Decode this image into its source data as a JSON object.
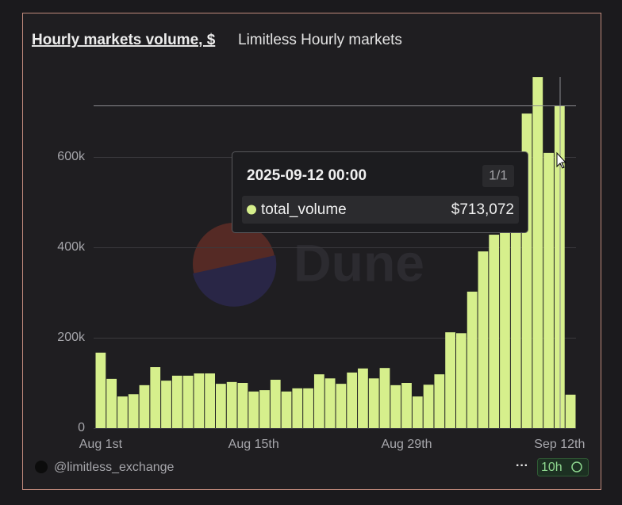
{
  "chart_data": {
    "type": "bar",
    "title": "Hourly markets volume, $",
    "subtitle": "Limitless Hourly markets",
    "watermark": "Dune",
    "categories": [
      "Aug 1st",
      null,
      null,
      null,
      null,
      null,
      null,
      null,
      null,
      null,
      null,
      null,
      null,
      null,
      "Aug 15th",
      null,
      null,
      null,
      null,
      null,
      null,
      null,
      null,
      null,
      null,
      null,
      null,
      null,
      "Aug 29th",
      null,
      null,
      null,
      null,
      null,
      null,
      null,
      null,
      null,
      null,
      null,
      null,
      null,
      "Sep 12th",
      null
    ],
    "series": [
      {
        "name": "total_volume",
        "color": "#d6ef8c",
        "values": [
          167000,
          109000,
          70000,
          75000,
          95000,
          135000,
          105000,
          116000,
          116000,
          121000,
          121000,
          98000,
          102000,
          100000,
          81000,
          84000,
          107000,
          81000,
          88000,
          88000,
          119000,
          110000,
          98000,
          123000,
          132000,
          110000,
          133000,
          95000,
          100000,
          70000,
          96000,
          119000,
          212000,
          210000,
          302000,
          391000,
          428000,
          439000,
          486000,
          696000,
          777000,
          609000,
          713072,
          74000
        ]
      }
    ],
    "ylim": [
      0,
      800000
    ],
    "yticks": [
      0,
      {
        "value": 200000,
        "label": "200k"
      },
      {
        "value": 400000,
        "label": "400k"
      },
      {
        "value": 600000,
        "label": "600k"
      }
    ],
    "grid": true,
    "tooltip": {
      "title": "2025-09-12 00:00",
      "page": "1/1",
      "value_label": "$713,072"
    },
    "footer": {
      "author": "@limitless_exchange",
      "menu": "···",
      "refresh": "10h"
    }
  }
}
